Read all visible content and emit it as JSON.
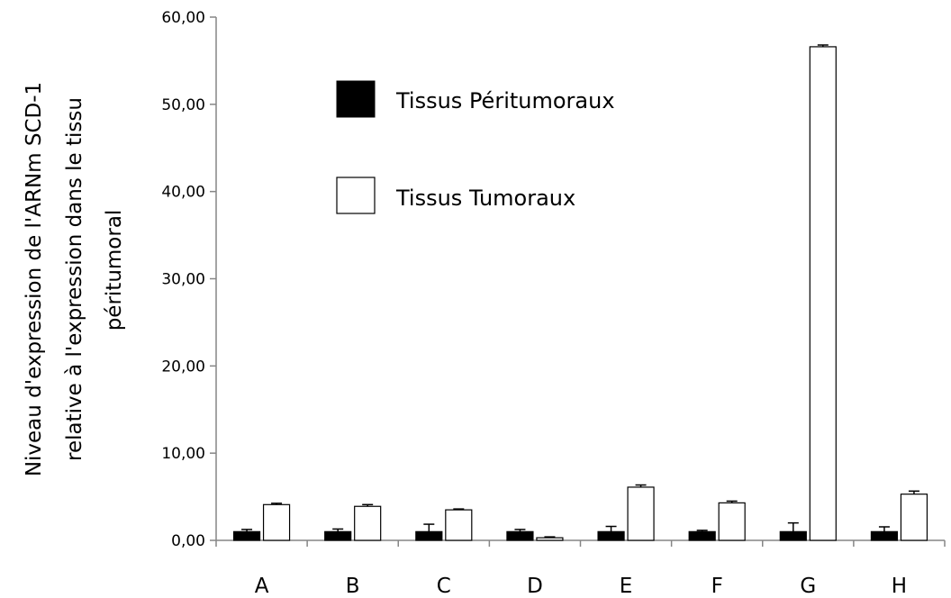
{
  "chart_data": {
    "type": "bar",
    "title": "",
    "xlabel": "",
    "ylabel_lines": [
      "Niveau d'expression de l'ARNm SCD-1",
      "relative à l'expression dans le tissu",
      "péritumoral"
    ],
    "categories": [
      "A",
      "B",
      "C",
      "D",
      "E",
      "F",
      "G",
      "H"
    ],
    "ylim": [
      0,
      60
    ],
    "yticks": [
      0,
      10,
      20,
      30,
      40,
      50,
      60
    ],
    "ytick_labels": [
      "0,00",
      "10,00",
      "20,00",
      "30,00",
      "40,00",
      "50,00",
      "60,00"
    ],
    "grid": false,
    "legend_placement": "upper-left",
    "series": [
      {
        "name": "Tissus Péritumoraux",
        "color": "#000000",
        "values": [
          1.0,
          1.0,
          1.0,
          1.0,
          1.0,
          1.0,
          1.0,
          1.0
        ],
        "errors": [
          0.25,
          0.3,
          0.85,
          0.25,
          0.6,
          0.15,
          1.0,
          0.55
        ]
      },
      {
        "name": "Tissus Tumoraux",
        "color": "#ffffff",
        "values": [
          4.1,
          3.9,
          3.5,
          0.3,
          6.1,
          4.3,
          56.6,
          5.3
        ],
        "errors": [
          0.15,
          0.2,
          0.1,
          0.1,
          0.25,
          0.2,
          0.2,
          0.35
        ]
      }
    ]
  }
}
